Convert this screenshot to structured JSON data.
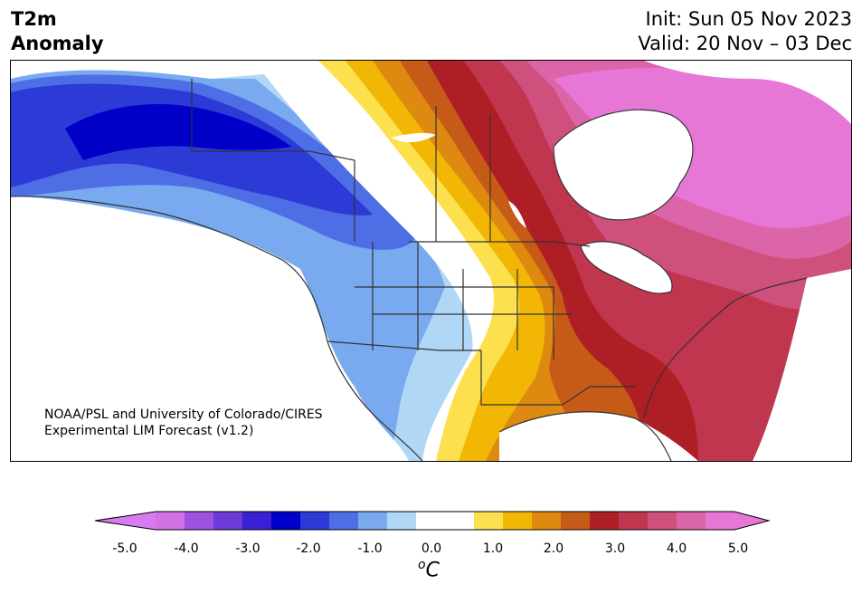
{
  "header": {
    "title_line1": "T2m",
    "title_line2": "Anomaly",
    "init_text": "Init: Sun 05 Nov 2023",
    "valid_text": "Valid: 20 Nov – 03 Dec"
  },
  "credit": {
    "line1": "NOAA/PSL and University of Colorado/CIRES",
    "line2": "Experimental LIM Forecast (v1.2)"
  },
  "colorbar": {
    "unit_prefix": "o",
    "unit_main": "C",
    "ticks": [
      "-5.0",
      "-4.0",
      "-3.0",
      "-2.0",
      "-1.0",
      "0.0",
      "1.0",
      "2.0",
      "3.0",
      "4.0",
      "5.0"
    ],
    "colors": [
      "#d371e6",
      "#9f52e0",
      "#6a3bd9",
      "#3b1fd2",
      "#0000c8",
      "#2c3ad6",
      "#4e6ee6",
      "#79a9ee",
      "#b1d7f7",
      "#ffffff",
      "#ffffff",
      "#fde04e",
      "#f2b705",
      "#de8a10",
      "#c65b17",
      "#ad1f24",
      "#c1364f",
      "#cf4f7d",
      "#db65a8",
      "#e777d6"
    ],
    "under_color": "#d87bf0",
    "over_color": "#e777d6"
  }
}
